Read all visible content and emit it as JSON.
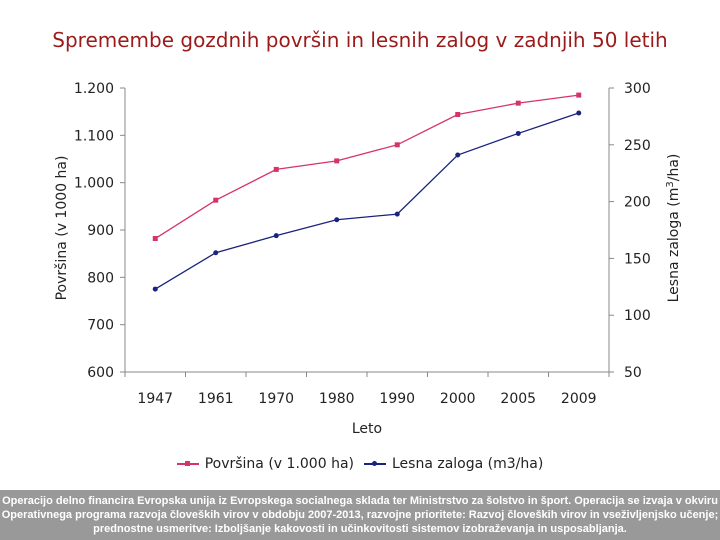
{
  "title": "Spremembe gozdnih površin in lesnih zalog v zadnjih 50 letih",
  "footer_text": "Operacijo delno financira Evropska unija iz Evropskega socialnega sklada ter Ministrstvo za šolstvo in šport. Operacija se izvaja v okviru Operativnega programa razvoja človeških virov v obdobju 2007-2013, razvojne prioritete: Razvoj človeških virov in vseživljenjsko učenje; prednostne usmeritve: Izboljšanje kakovosti in učinkovitosti sistemov izobraževanja in usposabljanja.",
  "colors": {
    "title": "#9b1b1b",
    "series_area": "#d6336c",
    "series_stock": "#1a237e",
    "footer_bg": "#999999"
  },
  "chart_data": {
    "type": "line",
    "title": "Spremembe gozdnih površin in lesnih zalog v zadnjih 50 letih",
    "xlabel": "Leto",
    "ylabel": "Površina (v 1000 ha)",
    "y2label": "Lesna zaloga (m³/ha)",
    "categories": [
      "1947",
      "1961",
      "1970",
      "1980",
      "1990",
      "2000",
      "2005",
      "2009"
    ],
    "ylim": [
      600,
      1200
    ],
    "y_ticks": [
      600,
      700,
      800,
      900,
      1000,
      1100,
      1200
    ],
    "y_tick_labels": [
      "600",
      "700",
      "800",
      "900",
      "1.000",
      "1.100",
      "1.200"
    ],
    "y2lim": [
      50,
      300
    ],
    "y2_ticks": [
      50,
      100,
      150,
      200,
      250,
      300
    ],
    "y2_tick_labels": [
      "50",
      "100",
      "150",
      "200",
      "250",
      "300"
    ],
    "grid": false,
    "legend_position": "bottom",
    "series": [
      {
        "name": "Površina (v 1.000 ha)",
        "axis": "left",
        "marker": "square",
        "color": "#d6336c",
        "values": [
          882,
          963,
          1028,
          1046,
          1080,
          1144,
          1168,
          1185
        ]
      },
      {
        "name": "Lesna zaloga (m3/ha)",
        "axis": "right",
        "marker": "circle",
        "color": "#1a237e",
        "values": [
          123,
          155,
          170,
          184,
          189,
          241,
          260,
          278
        ]
      }
    ]
  }
}
